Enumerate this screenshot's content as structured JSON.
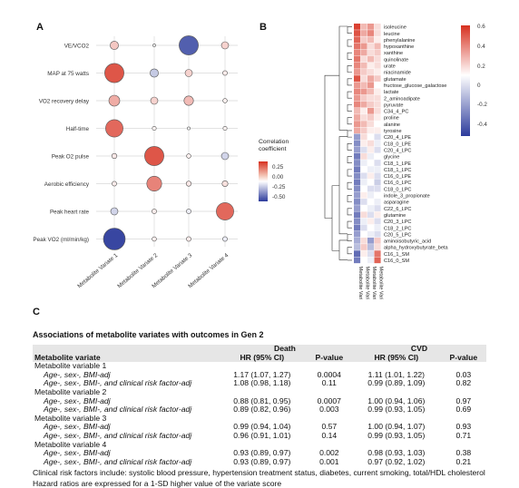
{
  "panels": {
    "a": "A",
    "b": "B",
    "c": "C"
  },
  "chart_data": [
    {
      "type": "scatter",
      "rows": [
        "VE/VCO2",
        "MAP at 75 watts",
        "VO2 recovery delay",
        "Half-time",
        "Peak O2 pulse",
        "Aerobic efficiency",
        "Peak heart rate",
        "Peak VO2 (ml/min/kg)"
      ],
      "columns": [
        "Metabolite Variate 1",
        "Metabolite Variate 2",
        "Metabolite Variate 3",
        "Metabolite Variate 4"
      ],
      "values": [
        [
          0.15,
          0.0,
          -0.45,
          0.12
        ],
        [
          0.45,
          -0.15,
          0.12,
          0.05
        ],
        [
          0.22,
          0.12,
          0.18,
          0.04
        ],
        [
          0.4,
          0.03,
          0.0,
          0.03
        ],
        [
          0.06,
          0.45,
          0.04,
          -0.12
        ],
        [
          0.05,
          0.33,
          0.06,
          0.08
        ],
        [
          -0.12,
          0.05,
          -0.05,
          0.4
        ],
        [
          -0.52,
          0.04,
          0.05,
          -0.05
        ]
      ],
      "legend_title": "Correlation coefficient",
      "legend_ticks": [
        "0.25",
        "0.00",
        "-0.25",
        "-0.50"
      ],
      "colors": {
        "positive": "#d7301f",
        "zero": "#ffffff",
        "negative": "#2c3b9c"
      }
    },
    {
      "type": "heatmap",
      "rows": [
        "isoleucine",
        "leucine",
        "phenylalanine",
        "hypoxanthine",
        "xanthine",
        "quinolinate",
        "urate",
        "niacinamide",
        "glutamate",
        "fructose_glucose_galactose",
        "lactate",
        "2_aminoadipate",
        "pyruvate",
        "C34_4_PC",
        "proline",
        "alanine",
        "tyrosine",
        "C20_4_LPE",
        "C18_0_LPE",
        "C20_4_LPC",
        "glycine",
        "C18_1_LPE",
        "C18_1_LPC",
        "C16_0_LPE",
        "C16_0_LPC",
        "C18_0_LPC",
        "indole_3_propionate",
        "asparagine",
        "C22_6_LPC",
        "glutamine",
        "C20_3_LPC",
        "C18_2_LPC",
        "C20_5_LPC",
        "aminoisobutyric_acid",
        "alpha_hydroxybutyrate_beta",
        "C16_1_SM",
        "C16_0_SM"
      ],
      "columns": [
        "Metabolite Variate 1",
        "Metabolite Variate 2",
        "Metabolite Variate 3",
        "Metabolite Variate 4"
      ],
      "values": [
        [
          0.55,
          0.2,
          0.3,
          0.1
        ],
        [
          0.5,
          0.25,
          0.35,
          0.1
        ],
        [
          0.45,
          0.15,
          0.2,
          0.05
        ],
        [
          0.4,
          0.3,
          0.1,
          0.2
        ],
        [
          0.35,
          0.25,
          0.1,
          0.15
        ],
        [
          0.4,
          0.1,
          0.2,
          0.1
        ],
        [
          0.35,
          0.2,
          0.05,
          0.1
        ],
        [
          0.3,
          0.15,
          0.1,
          0.05
        ],
        [
          0.5,
          0.1,
          0.25,
          0.15
        ],
        [
          0.3,
          0.2,
          0.3,
          0.0
        ],
        [
          0.35,
          0.3,
          0.2,
          0.05
        ],
        [
          0.3,
          0.15,
          0.1,
          0.1
        ],
        [
          0.35,
          0.25,
          0.15,
          0.1
        ],
        [
          0.2,
          0.05,
          0.3,
          0.1
        ],
        [
          0.25,
          0.1,
          0.15,
          0.05
        ],
        [
          0.3,
          0.2,
          0.1,
          0.0
        ],
        [
          0.25,
          0.15,
          0.05,
          0.05
        ],
        [
          -0.3,
          0.1,
          0.0,
          -0.1
        ],
        [
          -0.35,
          0.05,
          0.1,
          -0.05
        ],
        [
          -0.3,
          -0.1,
          0.05,
          -0.1
        ],
        [
          -0.4,
          0.1,
          -0.05,
          0.0
        ],
        [
          -0.35,
          -0.05,
          0.0,
          -0.1
        ],
        [
          -0.4,
          0.0,
          -0.05,
          -0.05
        ],
        [
          -0.35,
          -0.1,
          0.05,
          -0.1
        ],
        [
          -0.4,
          -0.05,
          0.0,
          -0.15
        ],
        [
          -0.35,
          0.0,
          -0.1,
          -0.1
        ],
        [
          -0.3,
          0.05,
          -0.05,
          0.0
        ],
        [
          -0.35,
          -0.1,
          0.0,
          -0.05
        ],
        [
          -0.3,
          0.0,
          -0.05,
          -0.1
        ],
        [
          -0.4,
          0.1,
          -0.1,
          0.05
        ],
        [
          -0.35,
          -0.05,
          0.05,
          -0.1
        ],
        [
          -0.4,
          -0.1,
          0.0,
          -0.05
        ],
        [
          -0.3,
          0.0,
          -0.05,
          -0.1
        ],
        [
          -0.25,
          0.1,
          -0.3,
          0.15
        ],
        [
          -0.2,
          0.15,
          -0.2,
          0.1
        ],
        [
          -0.45,
          0.05,
          -0.1,
          0.4
        ],
        [
          -0.4,
          0.0,
          -0.05,
          0.45
        ]
      ],
      "legend_ticks": [
        "0.6",
        "0.4",
        "0.2",
        "0",
        "-0.2",
        "-0.4"
      ],
      "colors": {
        "positive": "#d7301f",
        "zero": "#ffffff",
        "negative": "#2c3b9c"
      }
    }
  ],
  "table": {
    "title": "Associations of metabolite variates with outcomes in Gen 2",
    "group_headers": {
      "death": "Death",
      "cvd": "CVD"
    },
    "col_headers": {
      "variate": "Metabolite variate",
      "hr": "HR (95% CI)",
      "p": "P-value",
      "hr2": "HR (95% CI)",
      "p2": "P-value"
    },
    "rows": [
      {
        "kind": "section",
        "label": "Metabolite variable 1"
      },
      {
        "kind": "sub",
        "label": "Age-, sex-, BMI-adj",
        "hr_death": "1.17 (1.07, 1.27)",
        "p_death": "0.0004",
        "hr_cvd": "1.11 (1.01, 1.22)",
        "p_cvd": "0.03"
      },
      {
        "kind": "sub",
        "label": "Age-, sex-, BMI-, and clinical risk factor-adj",
        "hr_death": "1.08 (0.98, 1.18)",
        "p_death": "0.11",
        "hr_cvd": "0.99 (0.89, 1.09)",
        "p_cvd": "0.82"
      },
      {
        "kind": "section",
        "label": "Metabolite variable 2"
      },
      {
        "kind": "sub",
        "label": "Age-, sex-, BMI-adj",
        "hr_death": "0.88 (0.81, 0.95)",
        "p_death": "0.0007",
        "hr_cvd": "1.00 (0.94, 1.06)",
        "p_cvd": "0.97"
      },
      {
        "kind": "sub",
        "label": "Age-, sex-, BMI-, and clinical risk factor-adj",
        "hr_death": "0.89 (0.82, 0.96)",
        "p_death": "0.003",
        "hr_cvd": "0.99 (0.93, 1.05)",
        "p_cvd": "0.69"
      },
      {
        "kind": "section",
        "label": "Metabolite variable 3"
      },
      {
        "kind": "sub",
        "label": "Age-, sex-, BMI-adj",
        "hr_death": "0.99 (0.94, 1.04)",
        "p_death": "0.57",
        "hr_cvd": "1.00 (0.94, 1.07)",
        "p_cvd": "0.93"
      },
      {
        "kind": "sub",
        "label": "Age-, sex-, BMI-, and clinical risk factor-adj",
        "hr_death": "0.96 (0.91, 1.01)",
        "p_death": "0.14",
        "hr_cvd": "0.99 (0.93, 1.05)",
        "p_cvd": "0.71"
      },
      {
        "kind": "section",
        "label": "Metabolite variable 4"
      },
      {
        "kind": "sub",
        "label": "Age-, sex-, BMI-adj",
        "hr_death": "0.93 (0.89, 0.97)",
        "p_death": "0.002",
        "hr_cvd": "0.98 (0.93, 1.03)",
        "p_cvd": "0.38"
      },
      {
        "kind": "sub",
        "label": "Age-, sex-, BMI-, and clinical risk factor-adj",
        "hr_death": "0.93 (0.89, 0.97)",
        "p_death": "0.001",
        "hr_cvd": "0.97 (0.92, 1.02)",
        "p_cvd": "0.21"
      }
    ],
    "footnotes": [
      "Clinical risk factors include: systolic blood pressure, hypertension treatment status, diabetes, current smoking, total/HDL cholesterol",
      "Hazard ratios are expressed for a 1-SD higher value of the variate score"
    ]
  }
}
